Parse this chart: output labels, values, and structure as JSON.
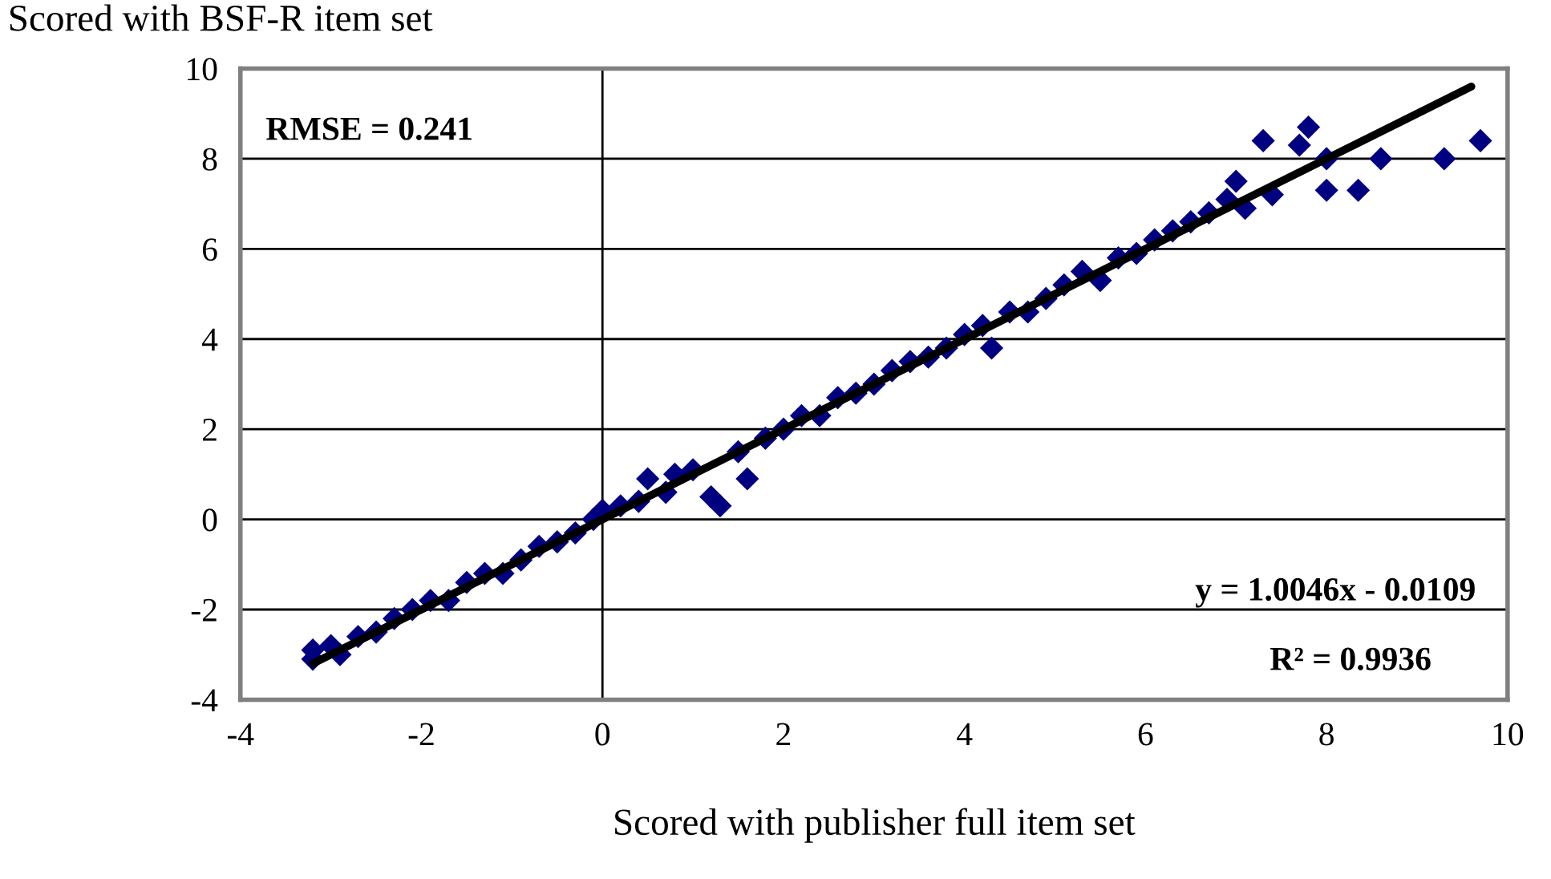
{
  "chart_data": {
    "type": "scatter",
    "xlabel": "Scored with publisher full item set",
    "ylabel": "Scored with BSF-R item set",
    "xlim": [
      -4,
      10
    ],
    "ylim": [
      -4,
      10
    ],
    "xticks": [
      -4,
      -2,
      0,
      2,
      4,
      6,
      8,
      10
    ],
    "yticks": [
      -4,
      -2,
      0,
      2,
      4,
      6,
      8,
      10
    ],
    "grid": "y",
    "marker": "diamond",
    "ref_lines": [
      {
        "axis": "x",
        "value": 0,
        "color": "#000000"
      }
    ],
    "annotations": [
      "RMSE = 0.241",
      "y = 1.0046x - 0.0109",
      "R² = 0.9936"
    ],
    "series": [
      {
        "color": "#000080",
        "x": [
          -3.2,
          -3.2,
          -3.0,
          -2.9,
          -2.7,
          -2.5,
          -2.3,
          -2.1,
          -1.9,
          -1.7,
          -1.5,
          -1.3,
          -1.1,
          -0.9,
          -0.7,
          -0.5,
          -0.3,
          -0.1,
          0.0,
          0.2,
          0.4,
          0.5,
          0.7,
          0.8,
          1.0,
          1.2,
          1.3,
          1.5,
          1.6,
          1.8,
          2.0,
          2.2,
          2.4,
          2.6,
          2.8,
          3.0,
          3.2,
          3.4,
          3.6,
          3.8,
          4.0,
          4.2,
          4.3,
          4.5,
          4.7,
          4.9,
          5.1,
          5.3,
          5.5,
          5.7,
          5.9,
          6.1,
          6.3,
          6.5,
          6.7,
          6.9,
          7.0,
          7.1,
          7.3,
          7.4,
          7.8,
          7.7,
          8.0,
          8.0,
          8.35,
          8.6,
          9.3,
          9.7
        ],
        "values": [
          -2.9,
          -3.1,
          -2.8,
          -3.0,
          -2.6,
          -2.5,
          -2.2,
          -2.0,
          -1.8,
          -1.8,
          -1.4,
          -1.2,
          -1.2,
          -0.9,
          -0.6,
          -0.5,
          -0.3,
          0.0,
          0.2,
          0.3,
          0.4,
          0.9,
          0.6,
          1.0,
          1.1,
          0.5,
          0.3,
          1.5,
          0.9,
          1.8,
          2.0,
          2.3,
          2.3,
          2.7,
          2.8,
          3.0,
          3.3,
          3.5,
          3.6,
          3.8,
          4.1,
          4.3,
          3.8,
          4.6,
          4.6,
          4.9,
          5.2,
          5.5,
          5.3,
          5.8,
          5.9,
          6.2,
          6.4,
          6.6,
          6.8,
          7.1,
          7.5,
          6.9,
          8.4,
          7.2,
          8.7,
          8.3,
          7.3,
          8.0,
          7.3,
          8.0,
          8.0,
          8.4
        ]
      },
      {
        "type": "line",
        "color": "#000000",
        "marker": "none",
        "x": [
          -3.2,
          9.6
        ],
        "values": [
          -3.2,
          9.6
        ]
      }
    ]
  }
}
